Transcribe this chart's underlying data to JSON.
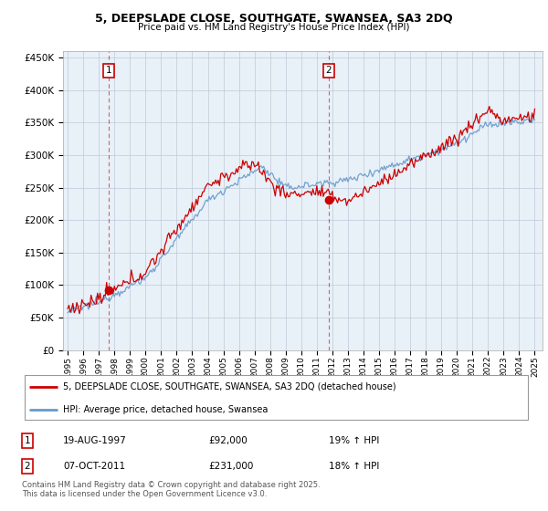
{
  "title_line1": "5, DEEPSLADE CLOSE, SOUTHGATE, SWANSEA, SA3 2DQ",
  "title_line2": "Price paid vs. HM Land Registry's House Price Index (HPI)",
  "legend_label1": "5, DEEPSLADE CLOSE, SOUTHGATE, SWANSEA, SA3 2DQ (detached house)",
  "legend_label2": "HPI: Average price, detached house, Swansea",
  "sale1_label": "1",
  "sale1_date": "19-AUG-1997",
  "sale1_price": "£92,000",
  "sale1_hpi": "19% ↑ HPI",
  "sale2_label": "2",
  "sale2_date": "07-OCT-2011",
  "sale2_price": "£231,000",
  "sale2_hpi": "18% ↑ HPI",
  "footer": "Contains HM Land Registry data © Crown copyright and database right 2025.\nThis data is licensed under the Open Government Licence v3.0.",
  "price_color": "#cc0000",
  "hpi_color": "#6699cc",
  "background_color": "#e8f0f8",
  "grid_color": "#c0c8d8",
  "ylim": [
    0,
    460000
  ],
  "yticks": [
    0,
    50000,
    100000,
    150000,
    200000,
    250000,
    300000,
    350000,
    400000,
    450000
  ],
  "sale1_year": 1997.64,
  "sale1_value": 92000,
  "sale2_year": 2011.77,
  "sale2_value": 231000,
  "xstart": 1995,
  "xend": 2025
}
